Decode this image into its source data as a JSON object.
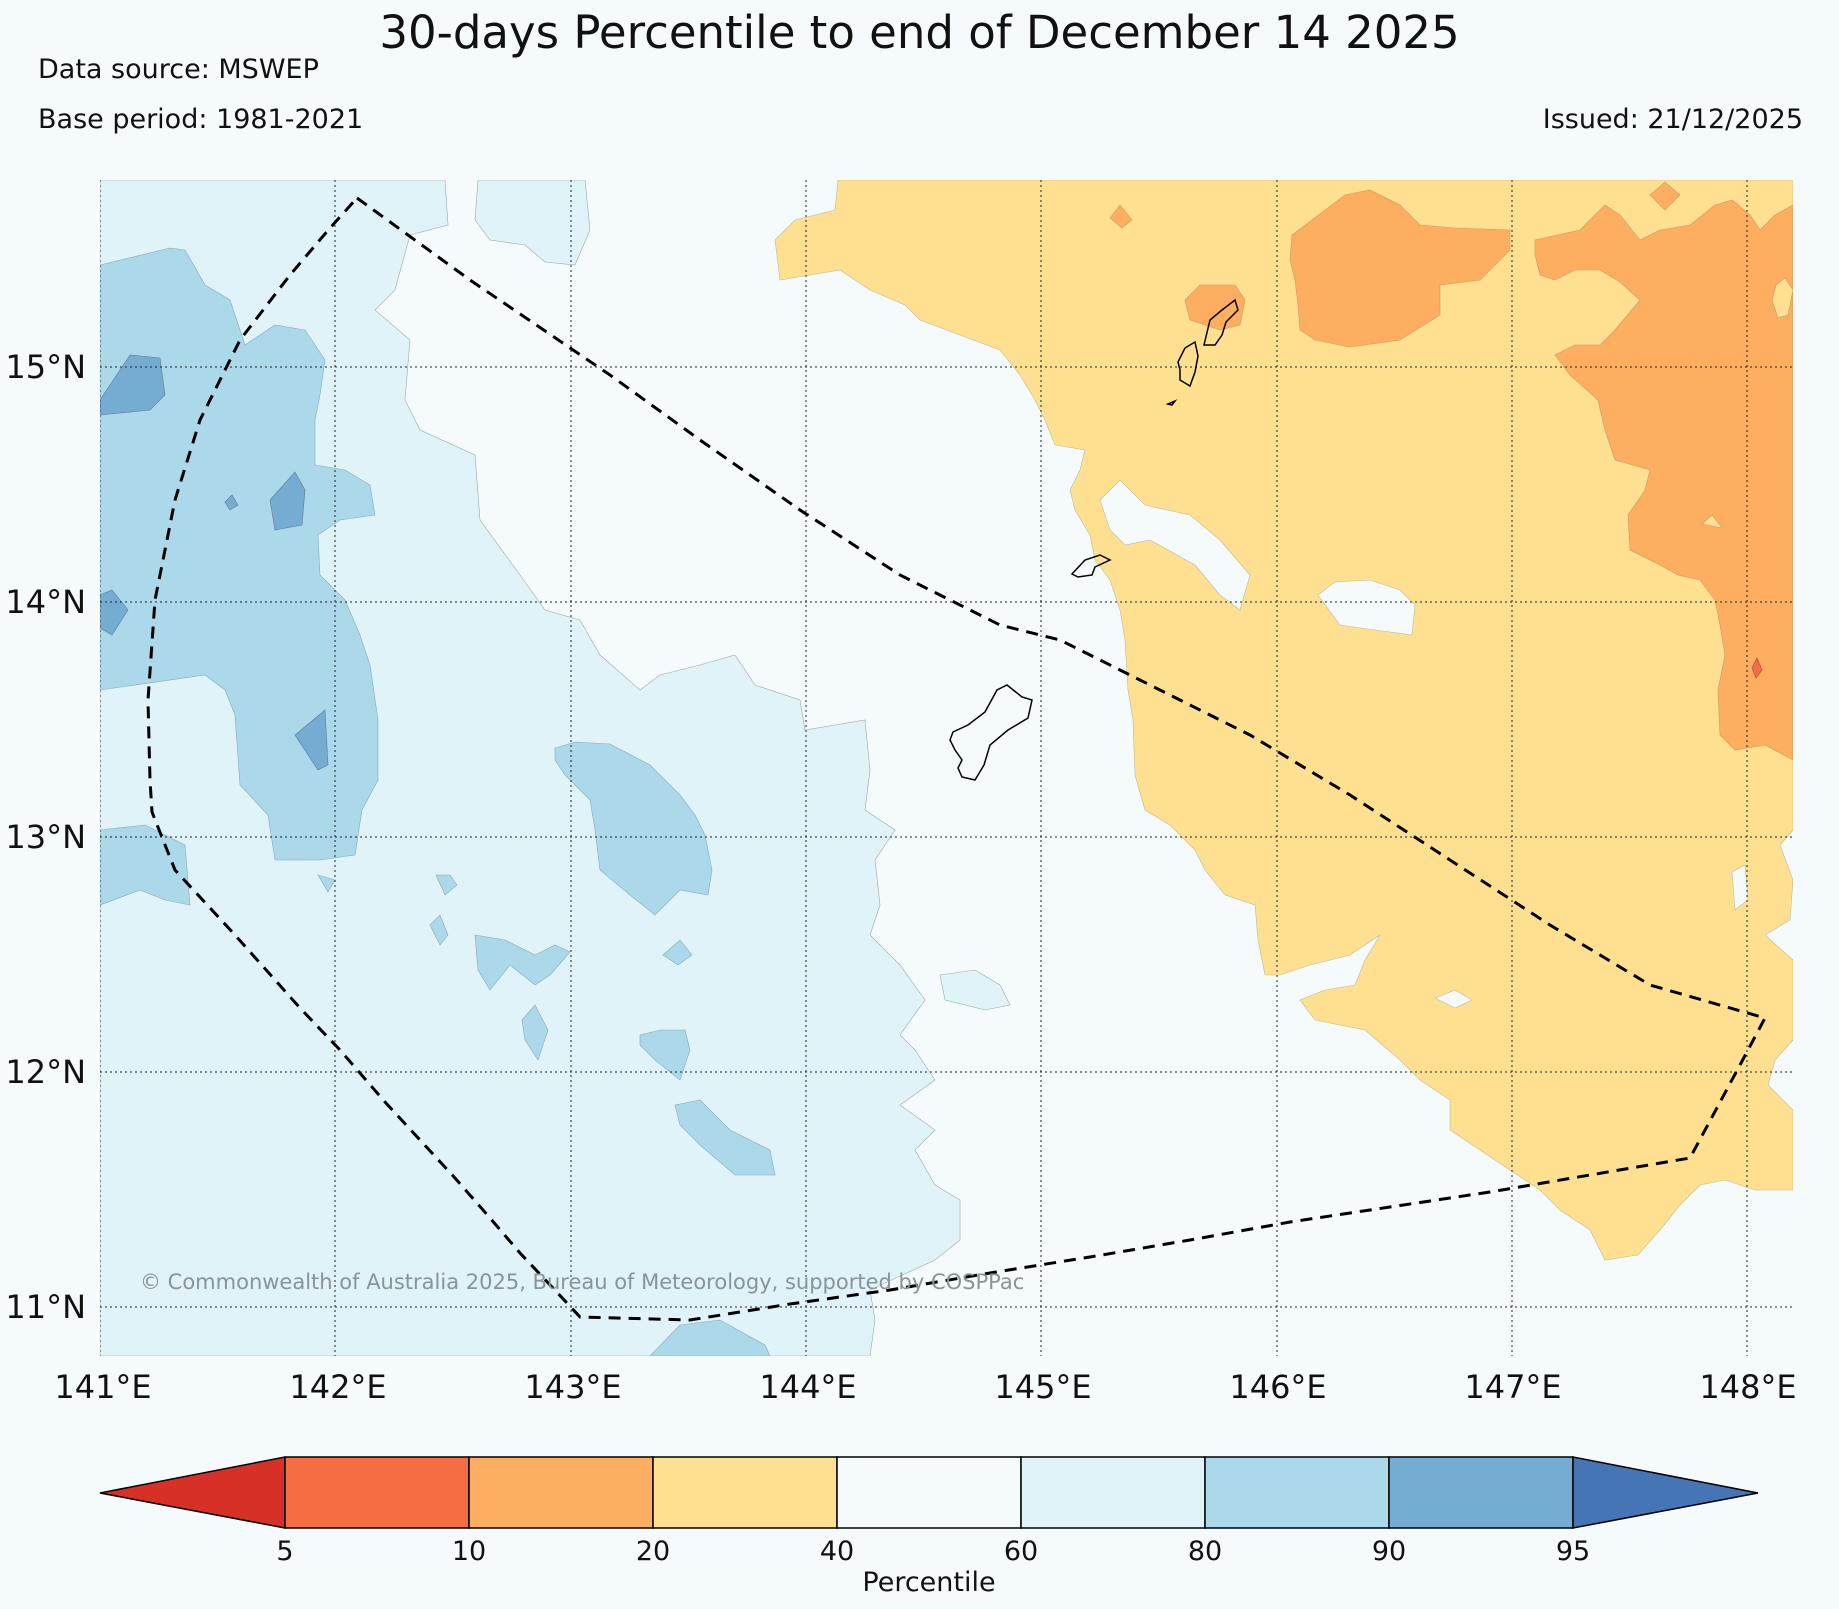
{
  "header": {
    "title": "30-days Percentile to end of December 14 2025",
    "data_source": "Data source: MSWEP",
    "base_period": "Base period: 1981-2021",
    "issued": "Issued: 21/12/2025"
  },
  "map": {
    "lon_labels": [
      "141°E",
      "142°E",
      "143°E",
      "144°E",
      "145°E",
      "146°E",
      "147°E",
      "148°E"
    ],
    "lat_labels": [
      "15°N",
      "14°N",
      "13°N",
      "12°N",
      "11°N"
    ],
    "copyright": "© Commonwealth of Australia 2025, Bureau of Meteorology, supported by COSPPac"
  },
  "legend": {
    "title": "Percentile",
    "ticks": [
      "5",
      "10",
      "20",
      "40",
      "60",
      "80",
      "90",
      "95"
    ],
    "colors": {
      "lt5": "#d73027",
      "p5_10": "#f46d43",
      "p10_20": "#fdae61",
      "p20_40": "#fee090",
      "p40_60": "#f5fbfd",
      "p60_80": "#e0f3f8",
      "p80_90": "#abd9e9",
      "p90_95": "#74add1",
      "gt95": "#4575b4"
    }
  }
}
